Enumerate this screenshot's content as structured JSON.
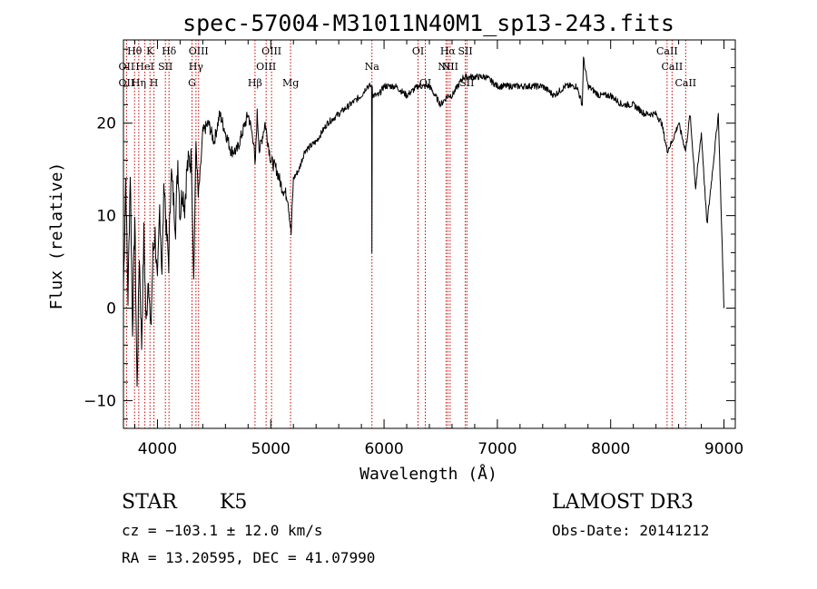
{
  "chart_data": {
    "type": "line",
    "title": "spec-57004-M31011N40M1_sp13-243.fits",
    "xlabel": "Wavelength (Å)",
    "ylabel": "Flux (relative)",
    "xlim": [
      3700,
      9100
    ],
    "ylim": [
      -13,
      29
    ],
    "xticks": [
      4000,
      5000,
      6000,
      7000,
      8000,
      9000
    ],
    "yticks": [
      -10,
      0,
      10,
      20
    ],
    "series": [
      {
        "name": "spectrum",
        "x": [
          3700,
          3720,
          3740,
          3760,
          3780,
          3800,
          3820,
          3840,
          3860,
          3880,
          3900,
          3920,
          3940,
          3960,
          3980,
          4000,
          4020,
          4040,
          4060,
          4080,
          4100,
          4120,
          4140,
          4160,
          4180,
          4200,
          4220,
          4240,
          4260,
          4280,
          4300,
          4320,
          4340,
          4360,
          4380,
          4400,
          4450,
          4500,
          4550,
          4600,
          4650,
          4700,
          4750,
          4800,
          4850,
          4861,
          4880,
          4900,
          4950,
          5000,
          5050,
          5100,
          5150,
          5180,
          5200,
          5250,
          5300,
          5400,
          5500,
          5600,
          5700,
          5800,
          5850,
          5890,
          5893,
          5896,
          5900,
          5950,
          6000,
          6100,
          6200,
          6300,
          6400,
          6500,
          6563,
          6600,
          6700,
          6800,
          6900,
          7000,
          7100,
          7200,
          7300,
          7400,
          7500,
          7600,
          7700,
          7750,
          7760,
          7800,
          7900,
          8000,
          8100,
          8200,
          8300,
          8400,
          8450,
          8498,
          8542,
          8600,
          8662,
          8700,
          8750,
          8800,
          8850,
          8900,
          8950,
          9000
        ],
        "values": [
          2,
          14,
          1,
          15,
          -2,
          10,
          -9,
          6,
          -4,
          8,
          -2,
          4,
          -3,
          6,
          8,
          2,
          11,
          4,
          14,
          8,
          5,
          15,
          12,
          9,
          16,
          10,
          13,
          11,
          15,
          16,
          16,
          3,
          18,
          12,
          15,
          19,
          20,
          18,
          21,
          19,
          17,
          17,
          19,
          21,
          18,
          15,
          21,
          17,
          20,
          16,
          15,
          13,
          12,
          8,
          14,
          15,
          17,
          18,
          20,
          21,
          22,
          23,
          24,
          24,
          6,
          24,
          23,
          23,
          24,
          24,
          23,
          24,
          24,
          22,
          23,
          23,
          25,
          25,
          25,
          24,
          24,
          24,
          24,
          24,
          23,
          24,
          24,
          22,
          27,
          24,
          23,
          23,
          22,
          22,
          21,
          21,
          20,
          17,
          18,
          20,
          17,
          21,
          13,
          19,
          9,
          15,
          21,
          0
        ]
      }
    ],
    "lines": [
      {
        "label": "OII",
        "wavelength": 3727,
        "row": 2
      },
      {
        "label": "Hθ",
        "wavelength": 3798,
        "row": 0
      },
      {
        "label": "OII",
        "wavelength": 3727,
        "row": 1
      },
      {
        "label": "Hη",
        "wavelength": 3835,
        "row": 2
      },
      {
        "label": "HeI",
        "wavelength": 3889,
        "row": 1
      },
      {
        "label": "K",
        "wavelength": 3934,
        "row": 0
      },
      {
        "label": "H",
        "wavelength": 3969,
        "row": 2
      },
      {
        "label": "SII",
        "wavelength": 4070,
        "row": 1
      },
      {
        "label": "Hδ",
        "wavelength": 4102,
        "row": 0
      },
      {
        "label": "OIII",
        "wavelength": 4363,
        "row": 0
      },
      {
        "label": "Hγ",
        "wavelength": 4340,
        "row": 1
      },
      {
        "label": "G",
        "wavelength": 4305,
        "row": 2
      },
      {
        "label": "Hβ",
        "wavelength": 4861,
        "row": 2
      },
      {
        "label": "OIII",
        "wavelength": 5007,
        "row": 0
      },
      {
        "label": "OIII",
        "wavelength": 4959,
        "row": 1
      },
      {
        "label": "Mg",
        "wavelength": 5175,
        "row": 2
      },
      {
        "label": "Na",
        "wavelength": 5893,
        "row": 1
      },
      {
        "label": "OI",
        "wavelength": 6300,
        "row": 0
      },
      {
        "label": "OI",
        "wavelength": 6364,
        "row": 2
      },
      {
        "label": "Hα",
        "wavelength": 6563,
        "row": 0
      },
      {
        "label": "SII",
        "wavelength": 6717,
        "row": 0
      },
      {
        "label": "NII",
        "wavelength": 6548,
        "row": 1
      },
      {
        "label": "NII",
        "wavelength": 6583,
        "row": 1
      },
      {
        "label": "SII",
        "wavelength": 6731,
        "row": 2
      },
      {
        "label": "CaII",
        "wavelength": 8498,
        "row": 0
      },
      {
        "label": "CaII",
        "wavelength": 8542,
        "row": 1
      },
      {
        "label": "CaII",
        "wavelength": 8662,
        "row": 2
      }
    ]
  },
  "info": {
    "class_label": "STAR",
    "subclass": "K5",
    "survey": "LAMOST DR3",
    "cz": "cz = −103.1 ± 12.0 km/s",
    "obs_date": "Obs-Date: 20141212",
    "coords": "RA =  13.20595, DEC =  41.07990"
  },
  "colors": {
    "line_marker": "#cc0000",
    "spectrum": "#000000"
  }
}
